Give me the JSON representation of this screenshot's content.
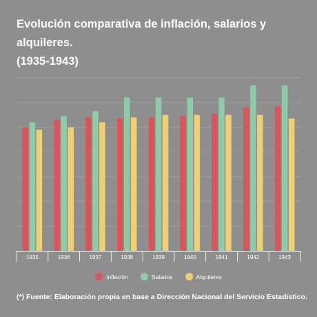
{
  "chart_data": {
    "type": "bar",
    "title_line1": "Evolución comparativa de inflación, salarios y alquileres.",
    "title_line2": "(1935-1943)",
    "categories": [
      "1935",
      "1936",
      "1937",
      "1938",
      "1939",
      "1940",
      "1941",
      "1942",
      "1943"
    ],
    "series": [
      {
        "name": "Inflación",
        "color": "#d9555a",
        "values": [
          100,
          106,
          108,
          107,
          108,
          109,
          111,
          116,
          117
        ]
      },
      {
        "name": "Salarios",
        "color": "#8ecba7",
        "values": [
          104,
          109,
          113,
          124,
          124,
          124,
          124,
          134,
          134
        ]
      },
      {
        "name": "Alquileres",
        "color": "#f0cf72",
        "values": [
          98,
          100,
          104,
          108,
          110,
          110,
          110,
          110,
          107
        ]
      }
    ],
    "ylim": [
      0,
      155
    ],
    "grid": true,
    "legend": "bottom-center"
  },
  "footer": {
    "source": "(*) Fuente: Elaboración propia en base a Dirección Nacional del Servicio Estadístico."
  }
}
